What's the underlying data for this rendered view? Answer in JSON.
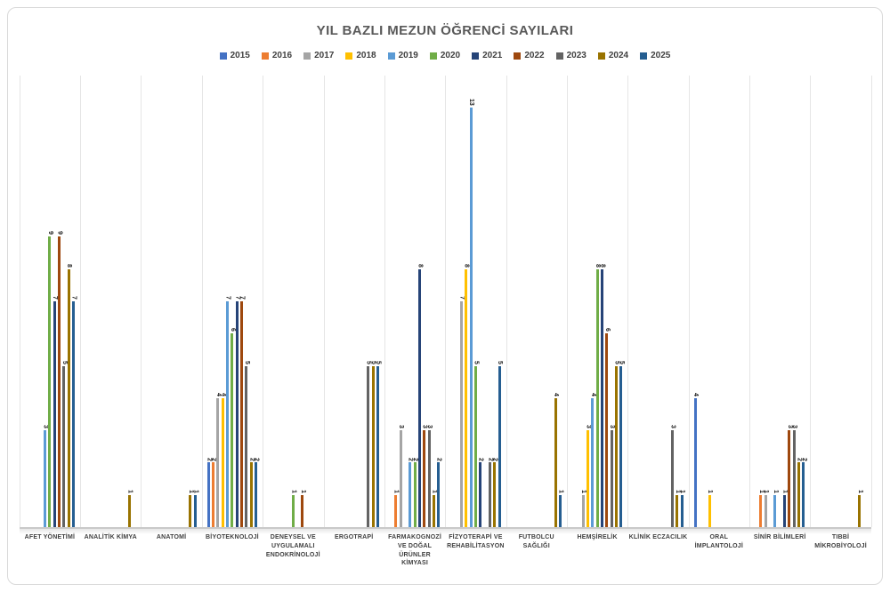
{
  "chart_data": {
    "type": "bar",
    "title": "YIL BAZLI MEZUN ÖĞRENCİ SAYILARI",
    "title_color": "#595959",
    "xlabel": "",
    "ylabel": "",
    "ylim": [
      0,
      14
    ],
    "legend_position": "top",
    "grid": "vertical-category-separators",
    "value_labels": "rotated-vertical-above-bars",
    "categories": [
      "AFET YÖNETİMİ",
      "ANALİTİK KİMYA",
      "ANATOMİ",
      "BİYOTEKNOLOJİ",
      "DENEYSEL VE UYGULAMALI ENDOKRİNOLOJİ",
      "ERGOTRAPİ",
      "FARMAKOGNOZİ VE DOĞAL ÜRÜNLER KİMYASI",
      "FİZYOTERAPİ VE REHABİLİTASYON",
      "FUTBOLCU SAĞLIĞI",
      "HEMŞİRELİK",
      "KLİNİK ECZACILIK",
      "ORAL İMPLANTOLOJİ",
      "SİNİR BİLİMLERİ",
      "TIBBİ MİKROBİYOLOJİ"
    ],
    "series": [
      {
        "name": "2015",
        "color": "#4472C4",
        "values": [
          null,
          null,
          null,
          2,
          null,
          null,
          null,
          null,
          null,
          null,
          null,
          4,
          null,
          null
        ]
      },
      {
        "name": "2016",
        "color": "#ED7D31",
        "values": [
          null,
          null,
          null,
          2,
          null,
          null,
          1,
          null,
          null,
          null,
          null,
          null,
          1,
          null
        ]
      },
      {
        "name": "2017",
        "color": "#A5A5A5",
        "values": [
          null,
          null,
          null,
          4,
          null,
          null,
          3,
          7,
          null,
          1,
          null,
          null,
          1,
          null
        ]
      },
      {
        "name": "2018",
        "color": "#FFC000",
        "values": [
          null,
          null,
          null,
          4,
          null,
          null,
          null,
          8,
          null,
          3,
          null,
          1,
          null,
          null
        ]
      },
      {
        "name": "2019",
        "color": "#5B9BD5",
        "values": [
          3,
          null,
          null,
          7,
          null,
          null,
          2,
          13,
          null,
          4,
          null,
          null,
          1,
          null
        ]
      },
      {
        "name": "2020",
        "color": "#70AD47",
        "values": [
          9,
          null,
          null,
          6,
          1,
          null,
          2,
          5,
          null,
          8,
          null,
          null,
          null,
          null
        ]
      },
      {
        "name": "2021",
        "color": "#264478",
        "values": [
          7,
          null,
          null,
          7,
          null,
          null,
          8,
          2,
          null,
          8,
          null,
          null,
          1,
          null
        ]
      },
      {
        "name": "2022",
        "color": "#9E480E",
        "values": [
          9,
          null,
          null,
          7,
          1,
          null,
          3,
          null,
          null,
          6,
          null,
          null,
          3,
          null
        ]
      },
      {
        "name": "2023",
        "color": "#636363",
        "values": [
          5,
          null,
          null,
          5,
          null,
          5,
          3,
          2,
          null,
          3,
          3,
          null,
          3,
          null
        ]
      },
      {
        "name": "2024",
        "color": "#997300",
        "values": [
          8,
          1,
          1,
          2,
          null,
          5,
          1,
          2,
          4,
          5,
          1,
          null,
          2,
          1
        ]
      },
      {
        "name": "2025",
        "color": "#255E91",
        "values": [
          7,
          null,
          1,
          2,
          null,
          5,
          2,
          5,
          1,
          5,
          1,
          null,
          2,
          null
        ]
      }
    ]
  }
}
